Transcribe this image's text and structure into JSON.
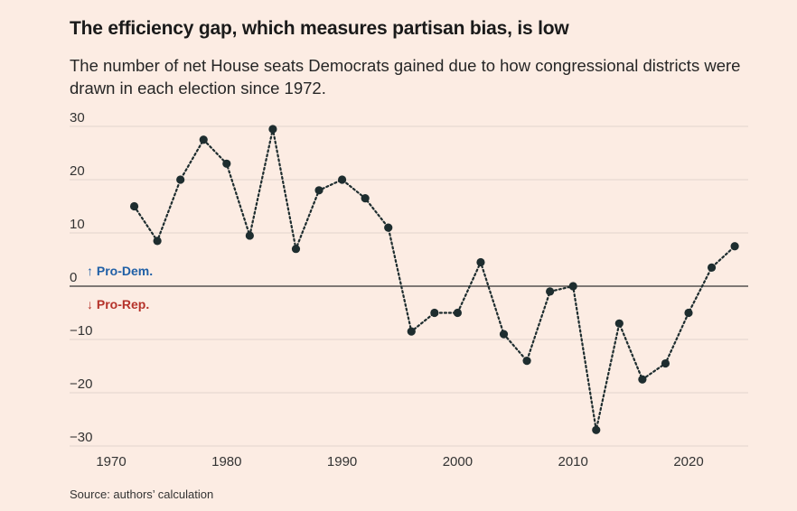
{
  "title": "The efficiency gap, which measures partisan bias, is low",
  "subtitle": "The number of net House seats Democrats gained due to how congressional districts were drawn in each election since 1972.",
  "source": "Source: authors’ calculation",
  "colors": {
    "background": "#fcece3",
    "line": "#1e2d2f",
    "dem": "#1f5fa6",
    "rep": "#b5322a",
    "grid": "#e2d4cc",
    "zero": "#333333"
  },
  "chart_data": {
    "type": "line",
    "title": "The efficiency gap, which measures partisan bias, is low",
    "xlabel": "",
    "ylabel": "",
    "x": [
      1972,
      1974,
      1976,
      1978,
      1980,
      1982,
      1984,
      1986,
      1988,
      1990,
      1992,
      1994,
      1996,
      1998,
      2000,
      2002,
      2004,
      2006,
      2008,
      2010,
      2012,
      2014,
      2016,
      2018,
      2020,
      2022,
      2024
    ],
    "y": [
      15,
      8.5,
      20,
      27.5,
      23,
      9.5,
      29.5,
      7,
      18,
      20,
      16.5,
      11,
      -8.5,
      -5,
      -5,
      4.5,
      -9,
      -14,
      -1,
      0,
      -27,
      -7,
      -17.5,
      -14.5,
      -5,
      3.5,
      7.5
    ],
    "xticks": [
      1970,
      1980,
      1990,
      2000,
      2010,
      2020
    ],
    "yticks": [
      30,
      20,
      10,
      0,
      -10,
      -20,
      -30
    ],
    "ytick_labels": [
      "30",
      "20",
      "10",
      "0",
      "−10",
      "−20",
      "−30"
    ],
    "xlim": [
      1970,
      2025
    ],
    "ylim": [
      -30,
      30
    ],
    "annotations": {
      "pro_dem": "↑ Pro-Dem.",
      "pro_rep": "↓ Pro-Rep."
    },
    "line_style": "dotted",
    "grid": true
  }
}
